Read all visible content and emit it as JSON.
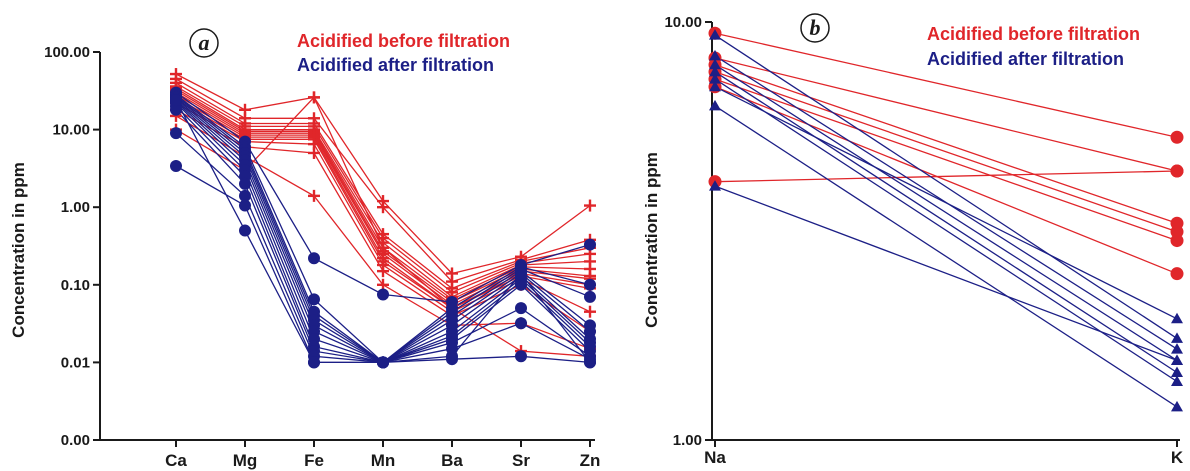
{
  "colors": {
    "red": "#e0262a",
    "blue": "#1c1f86",
    "axis": "#1a1a1a"
  },
  "chart_data": [
    {
      "type": "line",
      "panel_label": "a",
      "ylabel": "Concentration in ppm",
      "yscale": "log",
      "ylim": [
        0.001,
        100
      ],
      "ytick_values": [
        0.001,
        0.01,
        0.1,
        1,
        10,
        100
      ],
      "ytick_labels": [
        "0.00",
        "0.01",
        "0.10",
        "1.00",
        "10.00",
        "100.00"
      ],
      "categories": [
        "Ca",
        "Mg",
        "Fe",
        "Mn",
        "Ba",
        "Sr",
        "Zn"
      ],
      "legend": [
        "Acidified before filtration",
        "Acidified after filtration"
      ],
      "legend_position": "top-right",
      "series": [
        {
          "group": "before",
          "marker": "plus",
          "values": [
            52,
            18,
            26,
            1.2,
            0.14,
            0.23,
            1.05
          ]
        },
        {
          "group": "before",
          "marker": "plus",
          "values": [
            45,
            14,
            14,
            1.0,
            0.11,
            0.21,
            0.38
          ]
        },
        {
          "group": "before",
          "marker": "plus",
          "values": [
            40,
            12,
            12,
            0.45,
            0.09,
            0.2,
            0.3
          ]
        },
        {
          "group": "before",
          "marker": "plus",
          "values": [
            36,
            11,
            11,
            0.4,
            0.08,
            0.19,
            0.25
          ]
        },
        {
          "group": "before",
          "marker": "plus",
          "values": [
            34,
            10,
            10,
            0.35,
            0.07,
            0.18,
            0.2
          ]
        },
        {
          "group": "before",
          "marker": "plus",
          "values": [
            32,
            9.5,
            9.5,
            0.3,
            0.065,
            0.17,
            0.16
          ]
        },
        {
          "group": "before",
          "marker": "plus",
          "values": [
            30,
            9.0,
            9.0,
            0.27,
            0.06,
            0.16,
            0.13
          ]
        },
        {
          "group": "before",
          "marker": "plus",
          "values": [
            28,
            8.5,
            8.5,
            0.25,
            0.055,
            0.15,
            0.12
          ]
        },
        {
          "group": "before",
          "marker": "plus",
          "values": [
            26,
            8.0,
            8.0,
            0.22,
            0.05,
            0.14,
            0.1
          ]
        },
        {
          "group": "before",
          "marker": "plus",
          "values": [
            24,
            7.5,
            7.5,
            0.2,
            0.05,
            0.13,
            0.09
          ]
        },
        {
          "group": "before",
          "marker": "plus",
          "values": [
            22,
            7.0,
            6.5,
            0.18,
            0.045,
            0.12,
            0.045
          ]
        },
        {
          "group": "before",
          "marker": "plus",
          "values": [
            18,
            6.0,
            5.0,
            0.15,
            0.04,
            0.1,
            0.025
          ]
        },
        {
          "group": "before",
          "marker": "plus",
          "values": [
            15,
            4.5,
            1.4,
            0.1,
            0.03,
            0.032,
            0.015
          ]
        },
        {
          "group": "before",
          "marker": "plus",
          "values": [
            10,
            3.0,
            26,
            0.3,
            0.05,
            0.014,
            0.012
          ]
        },
        {
          "group": "after",
          "marker": "circle",
          "values": [
            30,
            7.0,
            0.22,
            0.075,
            0.06,
            0.18,
            0.33
          ]
        },
        {
          "group": "after",
          "marker": "circle",
          "values": [
            28,
            6.0,
            0.065,
            0.01,
            0.05,
            0.17,
            0.1
          ]
        },
        {
          "group": "after",
          "marker": "circle",
          "values": [
            27,
            5.5,
            0.045,
            0.01,
            0.045,
            0.16,
            0.07
          ]
        },
        {
          "group": "after",
          "marker": "circle",
          "values": [
            26,
            5.0,
            0.04,
            0.01,
            0.04,
            0.15,
            0.03
          ]
        },
        {
          "group": "after",
          "marker": "circle",
          "values": [
            25,
            4.5,
            0.035,
            0.01,
            0.035,
            0.14,
            0.025
          ]
        },
        {
          "group": "after",
          "marker": "circle",
          "values": [
            24,
            4.0,
            0.03,
            0.01,
            0.03,
            0.13,
            0.02
          ]
        },
        {
          "group": "after",
          "marker": "circle",
          "values": [
            23,
            3.5,
            0.025,
            0.01,
            0.025,
            0.12,
            0.018
          ]
        },
        {
          "group": "after",
          "marker": "circle",
          "values": [
            22,
            3.0,
            0.02,
            0.01,
            0.022,
            0.11,
            0.016
          ]
        },
        {
          "group": "after",
          "marker": "circle",
          "values": [
            20,
            2.5,
            0.016,
            0.01,
            0.02,
            0.1,
            0.014
          ]
        },
        {
          "group": "after",
          "marker": "circle",
          "values": [
            18,
            2.0,
            0.014,
            0.01,
            0.018,
            0.05,
            0.012
          ]
        },
        {
          "group": "after",
          "marker": "circle",
          "values": [
            9,
            1.4,
            0.012,
            0.01,
            0.015,
            0.032,
            0.011
          ]
        },
        {
          "group": "after",
          "marker": "circle",
          "values": [
            3.4,
            1.05,
            0.01,
            0.01,
            0.012,
            0.14,
            0.01
          ]
        },
        {
          "group": "after",
          "marker": "circle",
          "values": [
            24,
            0.5,
            0.01,
            0.01,
            0.011,
            0.012,
            0.01
          ]
        }
      ]
    },
    {
      "type": "line",
      "panel_label": "b",
      "ylabel": "Concentration in ppm",
      "yscale": "log",
      "ylim": [
        1,
        10
      ],
      "ytick_values": [
        1,
        10
      ],
      "ytick_labels": [
        "1.00",
        "10.00"
      ],
      "categories": [
        "Na",
        "K"
      ],
      "legend": [
        "Acidified before filtration",
        "Acidified after filtration"
      ],
      "legend_position": "top-right",
      "series": [
        {
          "group": "before",
          "marker": "circle",
          "values": [
            9.4,
            5.3
          ]
        },
        {
          "group": "before",
          "marker": "circle",
          "values": [
            8.2,
            4.4
          ]
        },
        {
          "group": "before",
          "marker": "circle",
          "values": [
            7.9,
            3.3
          ]
        },
        {
          "group": "before",
          "marker": "circle",
          "values": [
            7.6,
            3.15
          ]
        },
        {
          "group": "before",
          "marker": "circle",
          "values": [
            7.3,
            3.0
          ]
        },
        {
          "group": "before",
          "marker": "circle",
          "values": [
            7.0,
            2.5
          ]
        },
        {
          "group": "before",
          "marker": "circle",
          "values": [
            4.15,
            4.4
          ]
        },
        {
          "group": "after",
          "marker": "triangle",
          "values": [
            9.3,
            1.75
          ]
        },
        {
          "group": "after",
          "marker": "triangle",
          "values": [
            8.3,
            1.65
          ]
        },
        {
          "group": "after",
          "marker": "triangle",
          "values": [
            7.9,
            1.55
          ]
        },
        {
          "group": "after",
          "marker": "triangle",
          "values": [
            7.6,
            1.45
          ]
        },
        {
          "group": "after",
          "marker": "triangle",
          "values": [
            7.3,
            1.38
          ]
        },
        {
          "group": "after",
          "marker": "triangle",
          "values": [
            7.0,
            1.95
          ]
        },
        {
          "group": "after",
          "marker": "triangle",
          "values": [
            6.3,
            1.2
          ]
        },
        {
          "group": "after",
          "marker": "triangle",
          "values": [
            4.05,
            1.55
          ]
        }
      ]
    }
  ]
}
